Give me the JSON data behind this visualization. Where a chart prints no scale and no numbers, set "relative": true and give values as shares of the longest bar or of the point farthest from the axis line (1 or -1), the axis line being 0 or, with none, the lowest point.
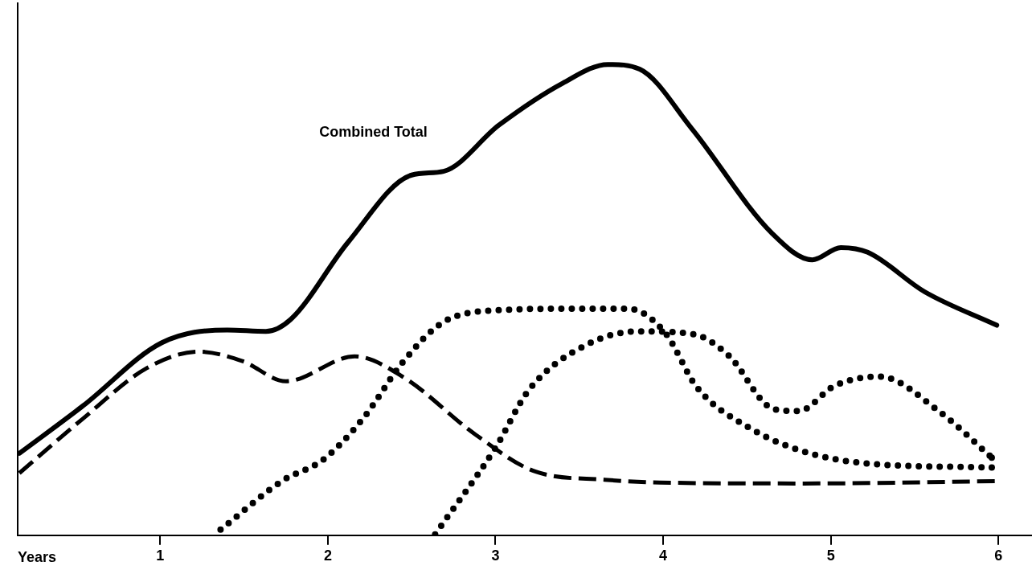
{
  "chart_data": {
    "type": "line",
    "relative": true,
    "xlabel": "Years",
    "xlim": [
      0.15,
      6.2
    ],
    "xticks": [
      1,
      2,
      3,
      4,
      5,
      6
    ],
    "grid": false,
    "legend": false,
    "marker": "none",
    "series": [
      {
        "name": "Combined Total",
        "color": "#000000",
        "line_style": "solid",
        "x": [
          0.16,
          0.54,
          1.01,
          1.4,
          1.63,
          1.78,
          2.12,
          2.5,
          2.69,
          3.02,
          3.4,
          3.67,
          3.86,
          4.17,
          4.65,
          4.89,
          5.06,
          5.22,
          5.56,
          5.99
        ],
        "values": [
          0.174,
          0.275,
          0.409,
          0.436,
          0.433,
          0.459,
          0.622,
          0.765,
          0.773,
          0.871,
          0.96,
          1,
          0.99,
          0.864,
          0.641,
          0.585,
          0.611,
          0.601,
          0.517,
          0.446
        ]
      },
      {
        "color": "#000000",
        "line_style": "dashed",
        "x": [
          0.16,
          0.54,
          0.92,
          1.23,
          1.49,
          1.75,
          2.16,
          2.45,
          2.88,
          3.24,
          3.65,
          3.98,
          4.84,
          5.99
        ],
        "values": [
          0.132,
          0.248,
          0.355,
          0.39,
          0.37,
          0.327,
          0.38,
          0.336,
          0.214,
          0.135,
          0.118,
          0.112,
          0.11,
          0.115
        ]
      },
      {
        "color": "#000000",
        "line_style": "dotted",
        "x": [
          1.36,
          1.73,
          1.97,
          2.21,
          2.45,
          2.69,
          3.02,
          3.4,
          3.79,
          4.01,
          4.2,
          4.51,
          4.82,
          5.2,
          5.96
        ],
        "values": [
          0.012,
          0.116,
          0.16,
          0.248,
          0.369,
          0.453,
          0.478,
          0.481,
          0.481,
          0.431,
          0.315,
          0.229,
          0.18,
          0.153,
          0.144
        ]
      },
      {
        "color": "#000000",
        "line_style": "dotted",
        "x": [
          2.64,
          3.0,
          3.2,
          3.54,
          3.85,
          4.18,
          4.39,
          4.66,
          4.81,
          5.02,
          5.29,
          5.65,
          5.96
        ],
        "values": [
          0.002,
          0.186,
          0.309,
          0.404,
          0.433,
          0.427,
          0.382,
          0.268,
          0.264,
          0.317,
          0.337,
          0.262,
          0.165
        ]
      }
    ]
  }
}
